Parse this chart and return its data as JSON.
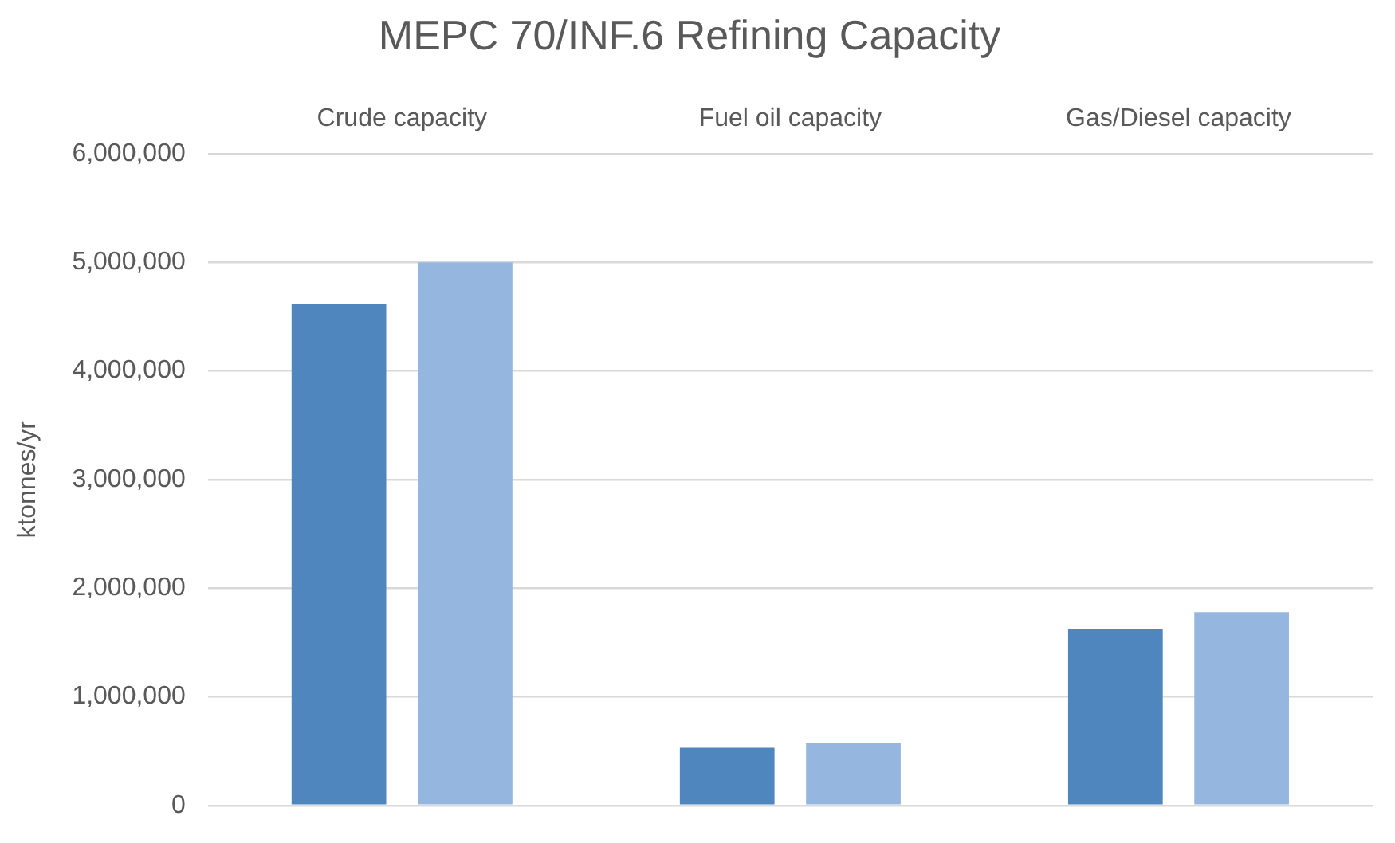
{
  "chart_data": {
    "type": "bar",
    "title": "MEPC 70/INF.6 Refining Capacity",
    "ylabel": "ktonnes/yr",
    "categories": [
      "Crude capacity",
      "Fuel oil capacity",
      "Gas/Diesel capacity"
    ],
    "series": [
      {
        "color": "#4f86bd",
        "values": [
          4620000,
          530000,
          1620000
        ]
      },
      {
        "color": "#95b7df",
        "values": [
          5000000,
          570000,
          1780000
        ]
      }
    ],
    "ylim": [
      0,
      6000000
    ],
    "yticks": [
      0,
      {
        "value": 1000000,
        "label": "1,000,000"
      },
      {
        "value": 2000000,
        "label": "2,000,000"
      },
      {
        "value": 3000000,
        "label": "3,000,000"
      },
      {
        "value": 4000000,
        "label": "4,000,000"
      },
      {
        "value": 5000000,
        "label": "5,000,000"
      },
      {
        "value": 6000000,
        "label": "6,000,000"
      }
    ],
    "grid": "y",
    "legend": false
  }
}
